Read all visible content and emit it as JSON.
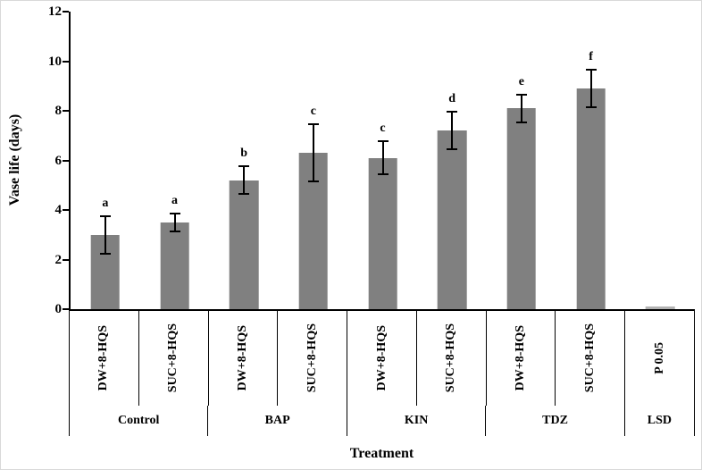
{
  "chart_data": {
    "type": "bar",
    "title": "",
    "ylabel": "Vase life (days)",
    "xlabel": "Treatment",
    "ylim": [
      0,
      12
    ],
    "yticks": [
      0,
      2,
      4,
      6,
      8,
      10,
      12
    ],
    "grid": false,
    "legend": "none",
    "bar_color": "#808080",
    "lsd_bar_color": "#b3b3b3",
    "groups": [
      {
        "label": "Control",
        "bars": [
          {
            "label": "DW+8-HQS",
            "value": 3.0,
            "error": 0.8,
            "letter": "a"
          },
          {
            "label": "SUC+8-HQS",
            "value": 3.5,
            "error": 0.4,
            "letter": "a"
          }
        ]
      },
      {
        "label": "BAP",
        "bars": [
          {
            "label": "DW+8-HQS",
            "value": 5.2,
            "error": 0.6,
            "letter": "b"
          },
          {
            "label": "SUC+8-HQS",
            "value": 6.3,
            "error": 1.2,
            "letter": "c"
          }
        ]
      },
      {
        "label": "KIN",
        "bars": [
          {
            "label": "DW+8-HQS",
            "value": 6.1,
            "error": 0.7,
            "letter": "c"
          },
          {
            "label": "SUC+8-HQS",
            "value": 7.2,
            "error": 0.8,
            "letter": "d"
          }
        ]
      },
      {
        "label": "TDZ",
        "bars": [
          {
            "label": "DW+8-HQS",
            "value": 8.1,
            "error": 0.6,
            "letter": "e"
          },
          {
            "label": "SUC+8-HQS",
            "value": 8.9,
            "error": 0.8,
            "letter": "f"
          }
        ]
      },
      {
        "label": "LSD",
        "bars": [
          {
            "label": "P 0.05",
            "value": 0.1,
            "error": 0,
            "letter": "",
            "lsd": true
          }
        ]
      }
    ]
  }
}
